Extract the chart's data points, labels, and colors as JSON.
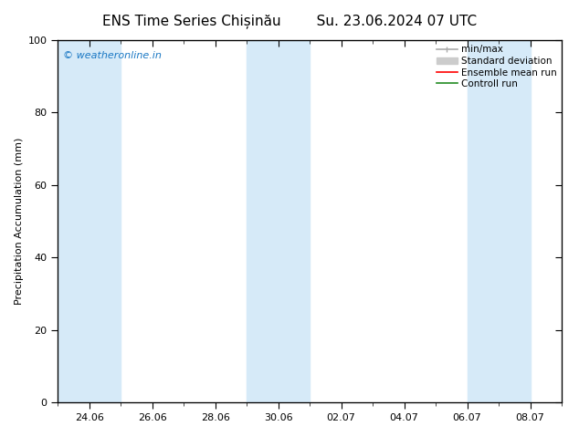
{
  "title_left": "ENS Time Series Chișinău",
  "title_right": "Su. 23.06.2024 07 UTC",
  "ylabel": "Precipitation Accumulation (mm)",
  "watermark": "© weatheronline.in",
  "watermark_color": "#1a78c4",
  "ylim": [
    0,
    100
  ],
  "xtick_labels": [
    "24.06",
    "26.06",
    "28.06",
    "30.06",
    "02.07",
    "04.07",
    "06.07",
    "08.07"
  ],
  "ytick_labels": [
    0,
    20,
    40,
    60,
    80,
    100
  ],
  "shaded_band_color": "#d6eaf8",
  "legend_minmax_color": "#aaaaaa",
  "legend_std_color": "#cccccc",
  "legend_ensemble_color": "#ff0000",
  "legend_control_color": "#228b22",
  "bg_color": "#ffffff",
  "title_fontsize": 11,
  "label_fontsize": 8,
  "tick_fontsize": 8,
  "watermark_fontsize": 8,
  "legend_fontsize": 7.5
}
